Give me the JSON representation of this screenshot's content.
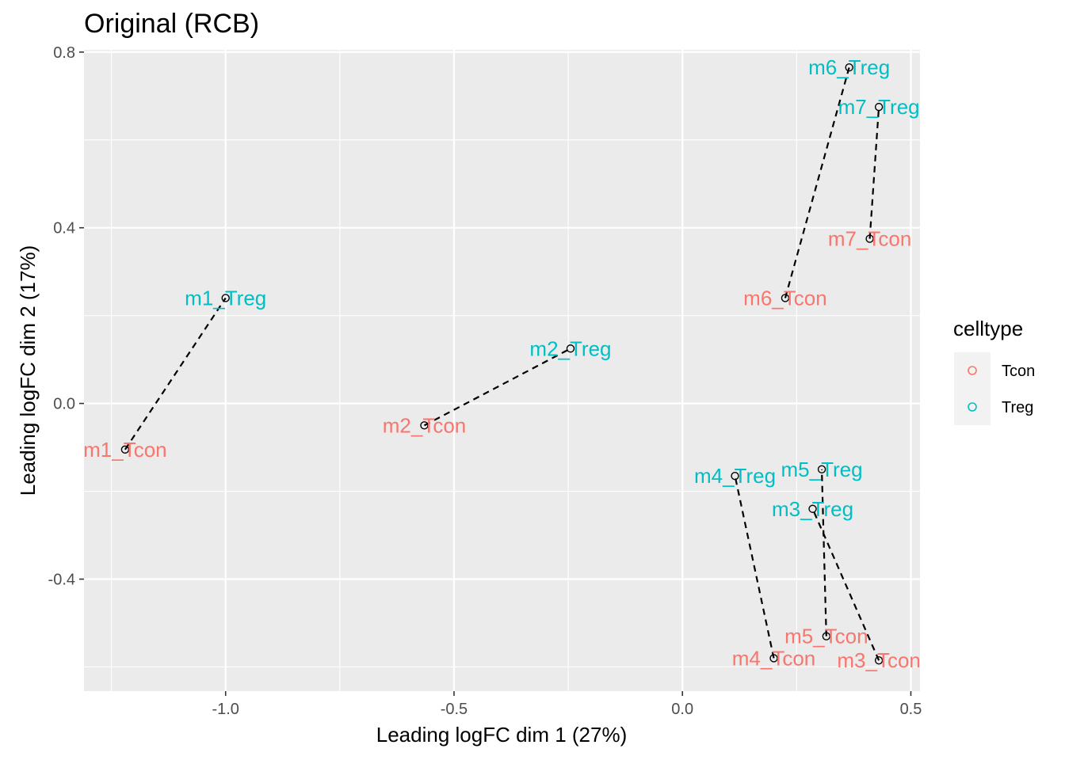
{
  "chart_data": {
    "type": "scatter",
    "title": "Original (RCB)",
    "xlabel": "Leading logFC dim 1 (27%)",
    "ylabel": "Leading logFC dim 2 (17%)",
    "xlim": [
      -1.31,
      0.52
    ],
    "ylim": [
      -0.655,
      0.805
    ],
    "x_ticks": [
      -1.0,
      -0.5,
      0.0,
      0.5
    ],
    "x_tick_labels": [
      "-1.0",
      "-0.5",
      "0.0",
      "0.5"
    ],
    "y_ticks": [
      0.8,
      0.4,
      0.0,
      -0.4
    ],
    "y_tick_labels": [
      "0.8",
      "0.4",
      "0.0",
      "-0.4"
    ],
    "grid": true,
    "legend": {
      "title": "celltype",
      "position": "right",
      "entries": [
        {
          "name": "Tcon",
          "color": "#F8766D"
        },
        {
          "name": "Treg",
          "color": "#00BFC4"
        }
      ]
    },
    "series": [
      {
        "name": "Tcon",
        "color": "#F8766D",
        "points": [
          {
            "label": "m1_Tcon",
            "x": -1.22,
            "y": -0.105
          },
          {
            "label": "m2_Tcon",
            "x": -0.565,
            "y": -0.05
          },
          {
            "label": "m3_Tcon",
            "x": 0.43,
            "y": -0.585
          },
          {
            "label": "m4_Tcon",
            "x": 0.2,
            "y": -0.58
          },
          {
            "label": "m5_Tcon",
            "x": 0.315,
            "y": -0.53
          },
          {
            "label": "m6_Tcon",
            "x": 0.225,
            "y": 0.24
          },
          {
            "label": "m7_Tcon",
            "x": 0.41,
            "y": 0.375
          }
        ]
      },
      {
        "name": "Treg",
        "color": "#00BFC4",
        "points": [
          {
            "label": "m1_Treg",
            "x": -1.0,
            "y": 0.24
          },
          {
            "label": "m2_Treg",
            "x": -0.245,
            "y": 0.125
          },
          {
            "label": "m3_Treg",
            "x": 0.285,
            "y": -0.24
          },
          {
            "label": "m4_Treg",
            "x": 0.115,
            "y": -0.165
          },
          {
            "label": "m5_Treg",
            "x": 0.305,
            "y": -0.15
          },
          {
            "label": "m6_Treg",
            "x": 0.365,
            "y": 0.765
          },
          {
            "label": "m7_Treg",
            "x": 0.43,
            "y": 0.675
          }
        ]
      }
    ],
    "pairs": [
      [
        "m1_Tcon",
        "m1_Treg"
      ],
      [
        "m2_Tcon",
        "m2_Treg"
      ],
      [
        "m3_Tcon",
        "m3_Treg"
      ],
      [
        "m4_Tcon",
        "m4_Treg"
      ],
      [
        "m5_Tcon",
        "m5_Treg"
      ],
      [
        "m6_Tcon",
        "m6_Treg"
      ],
      [
        "m7_Tcon",
        "m7_Treg"
      ]
    ]
  }
}
